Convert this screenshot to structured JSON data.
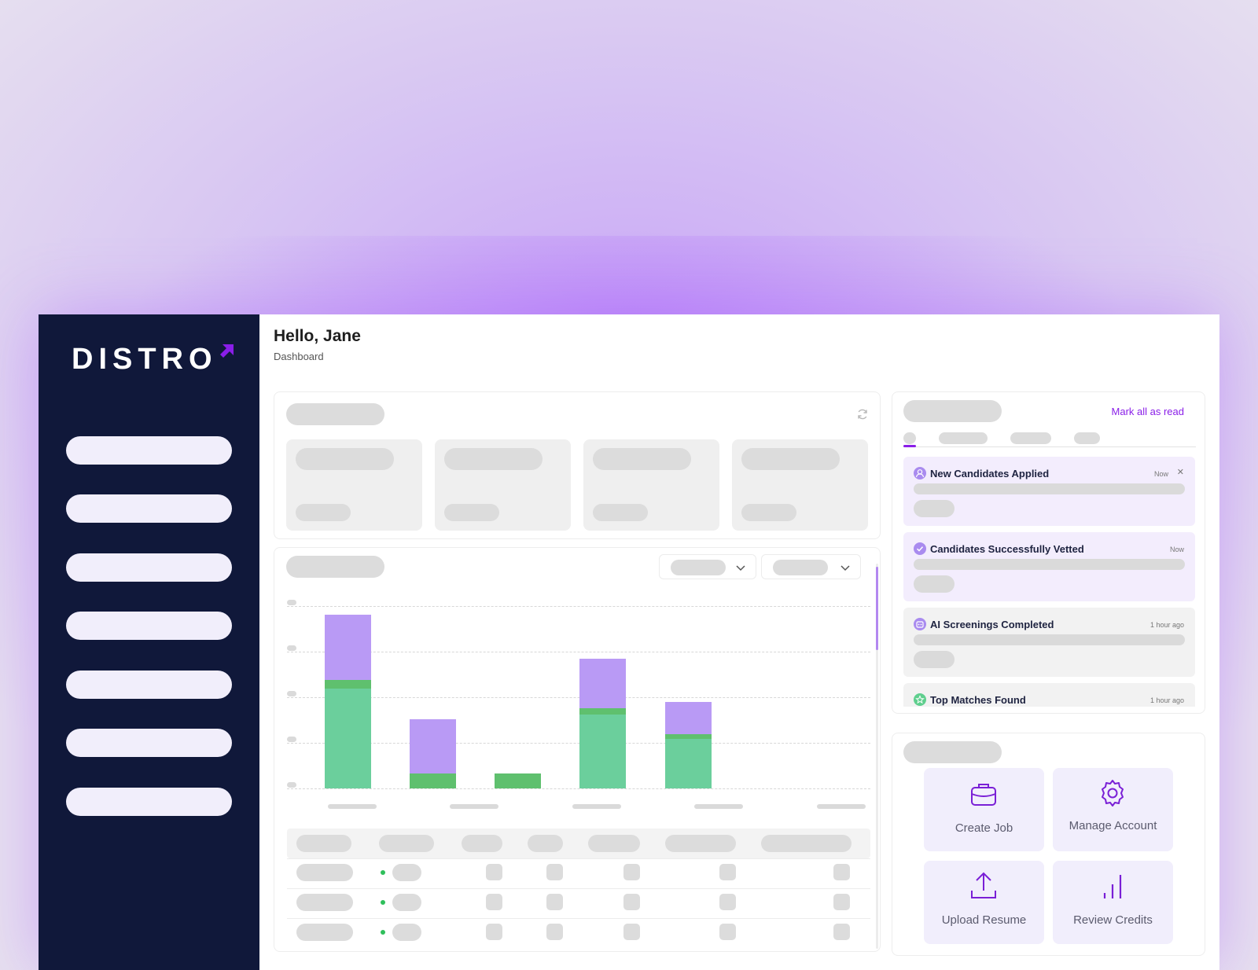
{
  "brand": {
    "logo_text": "DISTRO",
    "accent": "#8a1ee8",
    "sidebar_bg": "#10183a"
  },
  "header": {
    "greeting": "Hello, Jane",
    "breadcrumb": "Dashboard"
  },
  "sidebar": {
    "item_count": 7
  },
  "chart_data": {
    "type": "bar",
    "stacked": true,
    "categories": [
      "",
      "",
      "",
      "",
      ""
    ],
    "series": [
      {
        "values": [
          2.3,
          0.0,
          0.0,
          1.7,
          1.15
        ],
        "color": "#6bcf9c"
      },
      {
        "values": [
          0.2,
          0.35,
          0.35,
          0.15,
          0.1
        ],
        "color": "#5fc06e"
      },
      {
        "values": [
          1.5,
          1.25,
          0.0,
          1.15,
          0.75
        ],
        "color": "#b99af5"
      }
    ],
    "green_bottom_segments": [
      0,
      0,
      0.35,
      0,
      0
    ],
    "ylim": [
      0,
      4.2
    ],
    "grid": true,
    "title": "",
    "xlabel": "",
    "ylabel": ""
  },
  "notifications": {
    "mark_all_label": "Mark all as read",
    "items": [
      {
        "title": "New Candidates Applied",
        "time": "Now",
        "closable": true,
        "icon": "user-icon",
        "highlight": true
      },
      {
        "title": "Candidates Successfully Vetted",
        "time": "Now",
        "closable": false,
        "icon": "check-badge-icon",
        "highlight": true
      },
      {
        "title": "AI Screenings Completed",
        "time": "1 hour ago",
        "closable": false,
        "icon": "robot-icon",
        "highlight": false
      },
      {
        "title": "Top Matches Found",
        "time": "1 hour ago",
        "closable": false,
        "icon": "star-icon",
        "highlight": false
      }
    ]
  },
  "quick_actions": [
    {
      "label": "Create Job",
      "icon": "briefcase-icon"
    },
    {
      "label": "Manage Account",
      "icon": "gear-icon"
    },
    {
      "label": "Upload Resume",
      "icon": "upload-icon"
    },
    {
      "label": "Review Credits",
      "icon": "bar-chart-icon"
    }
  ]
}
